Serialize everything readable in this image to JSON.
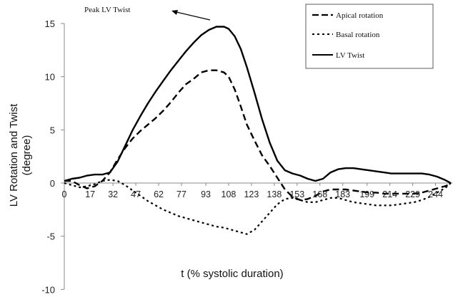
{
  "chart_data": {
    "type": "line",
    "xlabel": "t (% systolic duration)",
    "ylabel_line1": "LV Rotation and Twist",
    "ylabel_line2": "(degree)",
    "xlim": [
      0,
      255
    ],
    "ylim": [
      -10,
      15
    ],
    "yticks": [
      15,
      10,
      5,
      0,
      -5,
      -10
    ],
    "xtick_labels": [
      "0",
      "17",
      "32",
      "47",
      "62",
      "77",
      "93",
      "108",
      "123",
      "138",
      "153",
      "168",
      "183",
      "199",
      "214",
      "229",
      "244"
    ],
    "xtick_values": [
      0,
      17,
      32,
      47,
      62,
      77,
      93,
      108,
      123,
      138,
      153,
      168,
      183,
      199,
      214,
      229,
      244
    ],
    "annotation": "Peak LV Twist",
    "legend_position": "top-right",
    "series": [
      {
        "name": "Apical rotation",
        "style": "long-dash",
        "color": "#000000",
        "x": [
          0,
          5,
          10,
          15,
          20,
          25,
          30,
          35,
          40,
          45,
          50,
          55,
          60,
          65,
          70,
          75,
          80,
          85,
          90,
          95,
          100,
          105,
          108,
          112,
          116,
          120,
          125,
          130,
          135,
          140,
          145,
          150,
          155,
          160,
          165,
          170,
          175,
          180,
          185,
          190,
          195,
          200,
          205,
          210,
          215,
          220,
          225,
          230,
          235,
          240,
          245,
          250,
          254
        ],
        "y": [
          0.2,
          0.2,
          -0.2,
          -0.5,
          -0.3,
          0.2,
          1.0,
          2.2,
          3.3,
          4.2,
          4.9,
          5.5,
          6.1,
          6.8,
          7.6,
          8.5,
          9.3,
          9.8,
          10.4,
          10.6,
          10.6,
          10.4,
          10.0,
          8.8,
          7.2,
          5.5,
          4.0,
          2.6,
          1.6,
          0.5,
          -0.6,
          -1.3,
          -1.6,
          -1.5,
          -1.2,
          -0.8,
          -0.6,
          -0.6,
          -0.6,
          -0.7,
          -0.8,
          -0.9,
          -0.9,
          -1.0,
          -1.0,
          -1.0,
          -1.0,
          -1.0,
          -0.9,
          -0.7,
          -0.5,
          -0.3,
          -0.1
        ]
      },
      {
        "name": "Basal rotation",
        "style": "short-dash",
        "color": "#000000",
        "x": [
          0,
          5,
          10,
          15,
          20,
          25,
          30,
          35,
          40,
          45,
          50,
          55,
          60,
          65,
          70,
          75,
          80,
          85,
          90,
          95,
          100,
          105,
          110,
          115,
          120,
          125,
          130,
          135,
          140,
          145,
          150,
          155,
          160,
          165,
          170,
          175,
          180,
          185,
          190,
          195,
          200,
          205,
          210,
          215,
          220,
          225,
          230,
          235,
          240,
          245,
          250,
          254
        ],
        "y": [
          0.0,
          -0.2,
          -0.4,
          -0.3,
          -0.1,
          0.2,
          0.3,
          0.2,
          -0.2,
          -0.7,
          -1.2,
          -1.7,
          -2.1,
          -2.5,
          -2.8,
          -3.1,
          -3.3,
          -3.5,
          -3.7,
          -3.9,
          -4.1,
          -4.2,
          -4.4,
          -4.6,
          -4.8,
          -4.4,
          -3.6,
          -2.8,
          -2.0,
          -1.5,
          -1.4,
          -1.6,
          -1.8,
          -1.8,
          -1.6,
          -1.4,
          -1.4,
          -1.6,
          -1.8,
          -1.9,
          -2.0,
          -2.1,
          -2.1,
          -2.1,
          -2.0,
          -1.9,
          -1.8,
          -1.6,
          -1.3,
          -0.9,
          -0.5,
          0.0
        ]
      },
      {
        "name": "LV Twist",
        "style": "solid",
        "color": "#000000",
        "x": [
          0,
          5,
          10,
          15,
          20,
          25,
          30,
          35,
          40,
          45,
          50,
          55,
          60,
          65,
          70,
          75,
          80,
          85,
          90,
          95,
          100,
          105,
          108,
          112,
          116,
          120,
          125,
          130,
          135,
          140,
          145,
          150,
          155,
          160,
          165,
          170,
          175,
          180,
          185,
          190,
          195,
          200,
          205,
          210,
          215,
          220,
          225,
          230,
          235,
          240,
          245,
          250,
          254
        ],
        "y": [
          0.2,
          0.4,
          0.5,
          0.7,
          0.8,
          0.8,
          1.0,
          2.0,
          3.5,
          5.0,
          6.3,
          7.5,
          8.6,
          9.6,
          10.6,
          11.5,
          12.4,
          13.2,
          13.9,
          14.4,
          14.7,
          14.7,
          14.5,
          13.8,
          12.6,
          10.9,
          8.5,
          6.0,
          3.8,
          2.1,
          1.2,
          0.9,
          0.7,
          0.4,
          0.2,
          0.4,
          1.0,
          1.3,
          1.4,
          1.4,
          1.3,
          1.2,
          1.1,
          1.0,
          0.9,
          0.9,
          0.9,
          0.9,
          0.9,
          0.8,
          0.6,
          0.3,
          0.0
        ]
      }
    ]
  }
}
